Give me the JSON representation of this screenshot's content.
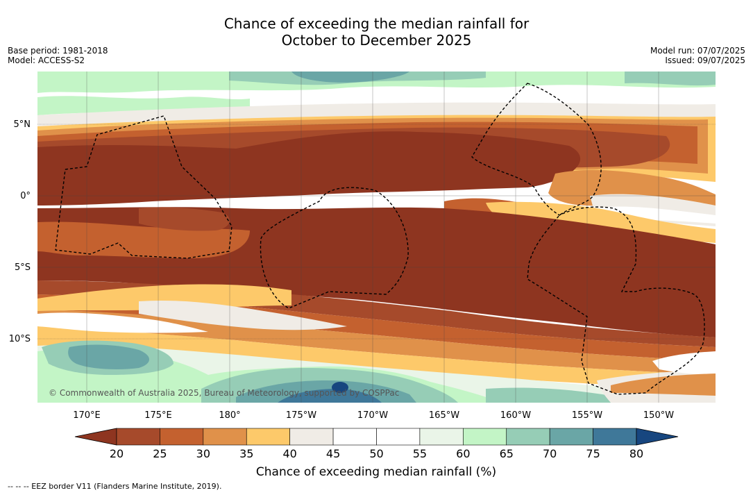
{
  "title_line1": "Chance of exceeding the median rainfall for",
  "title_line2": "October to December 2025",
  "meta_left": [
    "Base period: 1981-2018",
    "Model: ACCESS-S2"
  ],
  "meta_right": [
    "Model run: 07/07/2025",
    "Issued: 09/07/2025"
  ],
  "lat_labels": [
    {
      "text": "5°N",
      "lat": 5
    },
    {
      "text": "0°",
      "lat": 0
    },
    {
      "text": "5°S",
      "lat": -5
    },
    {
      "text": "10°S",
      "lat": -10
    }
  ],
  "lon_labels": [
    {
      "text": "170°E",
      "lon": 170
    },
    {
      "text": "175°E",
      "lon": 175
    },
    {
      "text": "180°",
      "lon": 180
    },
    {
      "text": "175°W",
      "lon": 185
    },
    {
      "text": "170°W",
      "lon": 190
    },
    {
      "text": "165°W",
      "lon": 195
    },
    {
      "text": "160°W",
      "lon": 200
    },
    {
      "text": "155°W",
      "lon": 205
    },
    {
      "text": "150°W",
      "lon": 210
    }
  ],
  "copyright": "© Commonwealth of Australia 2025, Bureau of Meteorology, supported by COSPPac",
  "colorbar": {
    "title": "Chance of exceeding median rainfall (%)",
    "ticks": [
      "20",
      "25",
      "30",
      "35",
      "40",
      "45",
      "50",
      "55",
      "60",
      "65",
      "70",
      "75",
      "80"
    ],
    "under_color": "#8e3520",
    "over_color": "#17467f",
    "colors": [
      "#a64a2b",
      "#c4612f",
      "#e0914a",
      "#fdc96a",
      "#f0ece6",
      "#ffffff",
      "#ffffff",
      "#eaf5e8",
      "#c3f5c6",
      "#96cdb6",
      "#6aa6a6",
      "#3f7899"
    ]
  },
  "footer": "-- -- -- EEZ border V11 (Flanders Marine Institute, 2019)."
}
